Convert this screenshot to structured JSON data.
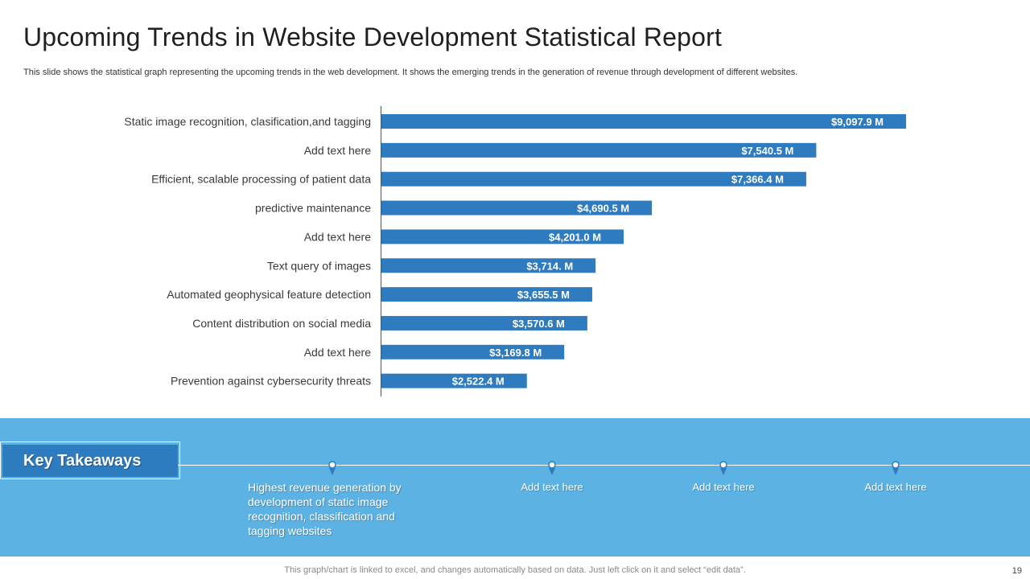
{
  "title": "Upcoming Trends in Website Development Statistical Report",
  "subtitle": "This slide shows the statistical graph representing the upcoming trends in the web development. It shows the emerging trends in the generation of revenue through development of different websites.",
  "colors": {
    "bar": "#2f7bbf",
    "band": "#5db2e4",
    "key_box": "#2e7cc0",
    "text_dark": "#1f1f1f"
  },
  "chart_data": {
    "type": "bar",
    "orientation": "horizontal",
    "title": "",
    "xlabel": "",
    "ylabel": "",
    "xlim": [
      0,
      10000
    ],
    "grid": false,
    "categories": [
      "Static image recognition, clasification,and tagging",
      "Add text here",
      "Efficient, scalable processing of patient data",
      "predictive maintenance",
      "Add text here",
      "Text query of images",
      "Automated geophysical feature detection",
      "Content distribution on social media",
      "Add text here",
      "Prevention against cybersecurity threats"
    ],
    "values": [
      9097.9,
      7540.5,
      7366.4,
      4690.5,
      4201.0,
      3714.0,
      3655.5,
      3570.6,
      3169.8,
      2522.4
    ],
    "data_labels": [
      "$9,097.9 M",
      "$7,540.5 M",
      "$7,366.4 M",
      "$4,690.5 M",
      "$4,201.0 M",
      "$3,714. M",
      "$3,655.5 M",
      "$3,570.6 M",
      "$3,169.8 M",
      "$2,522.4 M"
    ]
  },
  "key_takeaways": {
    "heading": "Key Takeaways",
    "items": [
      "Highest revenue generation by development of static image recognition, classification and tagging websites",
      "Add text here",
      "Add text here",
      "Add text here"
    ]
  },
  "footer": {
    "note": "This graph/chart is linked to excel,  and changes automatically based on data. Just left click on it and select “edit data”.",
    "page_number": "19"
  }
}
